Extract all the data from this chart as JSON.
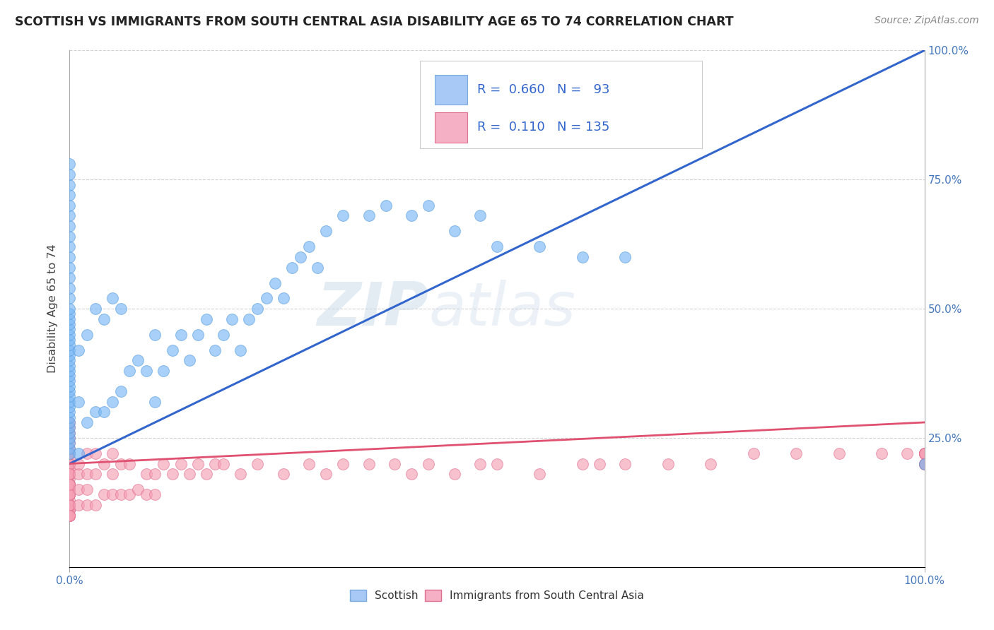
{
  "title": "SCOTTISH VS IMMIGRANTS FROM SOUTH CENTRAL ASIA DISABILITY AGE 65 TO 74 CORRELATION CHART",
  "source": "Source: ZipAtlas.com",
  "ylabel": "Disability Age 65 to 74",
  "xlim": [
    0,
    100
  ],
  "ylim": [
    0,
    100
  ],
  "background_color": "#ffffff",
  "grid_color": "#cccccc",
  "watermark_zip": "ZIP",
  "watermark_atlas": "atlas",
  "blue_R": "0.660",
  "blue_N": "93",
  "pink_R": "0.110",
  "pink_N": "135",
  "blue_line": [
    [
      0,
      20
    ],
    [
      100,
      100
    ]
  ],
  "pink_line": [
    [
      0,
      20
    ],
    [
      100,
      28
    ]
  ],
  "blue_color": "#7ab8f5",
  "blue_edge": "#5a9de0",
  "pink_color": "#f5a0b5",
  "pink_edge": "#e07090",
  "blue_line_color": "#3366cc",
  "pink_line_color": "#e05070",
  "blue_scatter_x": [
    0,
    0,
    0,
    0,
    0,
    0,
    0,
    0,
    0,
    0,
    0,
    0,
    0,
    0,
    0,
    0,
    0,
    0,
    0,
    0,
    0,
    0,
    0,
    0,
    0,
    0,
    0,
    0,
    0,
    0,
    0,
    0,
    0,
    0,
    0,
    0,
    0,
    0,
    0,
    0,
    0,
    0,
    0,
    1,
    1,
    1,
    2,
    2,
    3,
    3,
    4,
    4,
    5,
    5,
    6,
    6,
    7,
    8,
    9,
    10,
    10,
    11,
    12,
    13,
    14,
    15,
    16,
    17,
    18,
    19,
    20,
    21,
    22,
    23,
    24,
    25,
    26,
    27,
    28,
    29,
    30,
    32,
    35,
    37,
    40,
    42,
    45,
    48,
    50,
    55,
    60,
    65,
    100
  ],
  "blue_scatter_y": [
    22,
    23,
    24,
    25,
    26,
    27,
    28,
    29,
    30,
    31,
    32,
    33,
    34,
    35,
    36,
    37,
    38,
    39,
    40,
    41,
    42,
    43,
    44,
    45,
    46,
    47,
    48,
    49,
    50,
    52,
    54,
    56,
    58,
    60,
    62,
    64,
    66,
    68,
    70,
    72,
    74,
    76,
    78,
    22,
    32,
    42,
    28,
    45,
    30,
    50,
    30,
    48,
    32,
    52,
    34,
    50,
    38,
    40,
    38,
    32,
    45,
    38,
    42,
    45,
    40,
    45,
    48,
    42,
    45,
    48,
    42,
    48,
    50,
    52,
    55,
    52,
    58,
    60,
    62,
    58,
    65,
    68,
    68,
    70,
    68,
    70,
    65,
    68,
    62,
    62,
    60,
    60,
    20
  ],
  "pink_scatter_x": [
    0,
    0,
    0,
    0,
    0,
    0,
    0,
    0,
    0,
    0,
    0,
    0,
    0,
    0,
    0,
    0,
    0,
    0,
    0,
    0,
    0,
    0,
    0,
    0,
    0,
    0,
    0,
    0,
    0,
    0,
    0,
    0,
    0,
    0,
    0,
    0,
    0,
    0,
    0,
    0,
    0,
    0,
    0,
    0,
    0,
    0,
    0,
    0,
    0,
    0,
    0,
    0,
    0,
    0,
    0,
    0,
    0,
    0,
    0,
    0,
    0,
    0,
    0,
    0,
    0,
    0,
    1,
    1,
    1,
    1,
    2,
    2,
    2,
    2,
    3,
    3,
    3,
    4,
    4,
    5,
    5,
    5,
    6,
    6,
    7,
    7,
    8,
    9,
    9,
    10,
    10,
    11,
    12,
    13,
    14,
    15,
    16,
    17,
    18,
    20,
    22,
    25,
    28,
    30,
    32,
    35,
    38,
    40,
    42,
    45,
    48,
    50,
    55,
    60,
    62,
    65,
    70,
    75,
    80,
    85,
    90,
    95,
    98,
    100,
    100,
    100,
    100,
    100,
    100,
    100,
    100,
    100,
    100,
    100,
    100
  ],
  "pink_scatter_y": [
    10,
    11,
    12,
    13,
    14,
    15,
    16,
    17,
    18,
    19,
    20,
    21,
    22,
    23,
    24,
    25,
    26,
    27,
    28,
    22,
    20,
    18,
    16,
    14,
    12,
    11,
    10,
    15,
    18,
    20,
    22,
    18,
    16,
    14,
    12,
    11,
    10,
    15,
    18,
    16,
    14,
    12,
    10,
    14,
    16,
    18,
    20,
    22,
    16,
    14,
    12,
    10,
    14,
    16,
    14,
    12,
    10,
    15,
    18,
    16,
    14,
    12,
    10,
    14,
    16,
    18,
    12,
    15,
    18,
    20,
    12,
    15,
    18,
    22,
    12,
    18,
    22,
    14,
    20,
    14,
    18,
    22,
    14,
    20,
    14,
    20,
    15,
    14,
    18,
    14,
    18,
    20,
    18,
    20,
    18,
    20,
    18,
    20,
    20,
    18,
    20,
    18,
    20,
    18,
    20,
    20,
    20,
    18,
    20,
    18,
    20,
    20,
    18,
    20,
    20,
    20,
    20,
    20,
    22,
    22,
    22,
    22,
    22,
    20,
    20,
    22,
    22,
    22,
    22,
    22,
    22,
    22,
    20,
    20,
    20
  ]
}
